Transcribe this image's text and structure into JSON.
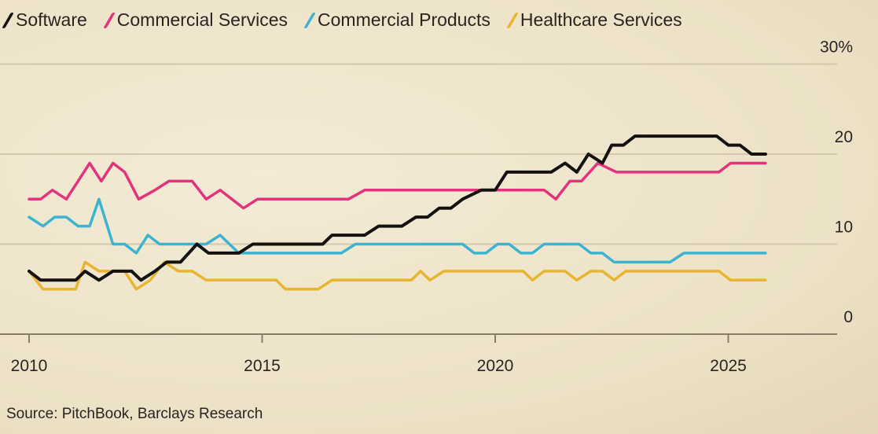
{
  "chart_data": {
    "type": "line",
    "title": "",
    "xlabel": "",
    "ylabel": "",
    "xlim": [
      2010,
      2026
    ],
    "ylim": [
      0,
      30
    ],
    "x_ticks": [
      2010,
      2015,
      2020,
      2025
    ],
    "x_tick_labels": [
      "2010",
      "2015",
      "2020",
      "2025"
    ],
    "y_ticks": [
      0,
      10,
      20,
      30
    ],
    "y_tick_labels": [
      "0",
      "10",
      "20",
      "30%"
    ],
    "grid": true,
    "legend_position": "top-left",
    "series": [
      {
        "name": "Software",
        "color": "#141211",
        "points": [
          [
            2010,
            7
          ],
          [
            2010.25,
            6
          ],
          [
            2011,
            6
          ],
          [
            2011.2,
            7
          ],
          [
            2011.5,
            6
          ],
          [
            2011.8,
            7
          ],
          [
            2012.2,
            7
          ],
          [
            2012.4,
            6
          ],
          [
            2012.7,
            7
          ],
          [
            2012.95,
            8
          ],
          [
            2013.25,
            8
          ],
          [
            2013.6,
            10
          ],
          [
            2013.85,
            9
          ],
          [
            2014.5,
            9
          ],
          [
            2014.8,
            10
          ],
          [
            2016.3,
            10
          ],
          [
            2016.5,
            11
          ],
          [
            2017.2,
            11
          ],
          [
            2017.5,
            12
          ],
          [
            2018,
            12
          ],
          [
            2018.3,
            13
          ],
          [
            2018.55,
            13
          ],
          [
            2018.8,
            14
          ],
          [
            2019.05,
            14
          ],
          [
            2019.3,
            15
          ],
          [
            2019.7,
            16
          ],
          [
            2020,
            16
          ],
          [
            2020.25,
            18
          ],
          [
            2021.2,
            18
          ],
          [
            2021.5,
            19
          ],
          [
            2021.75,
            18
          ],
          [
            2022,
            20
          ],
          [
            2022.3,
            19
          ],
          [
            2022.5,
            21
          ],
          [
            2022.75,
            21
          ],
          [
            2023,
            22
          ],
          [
            2024.75,
            22
          ],
          [
            2025,
            21
          ],
          [
            2025.25,
            21
          ],
          [
            2025.5,
            20
          ],
          [
            2025.8,
            20
          ]
        ]
      },
      {
        "name": "Commercial Services",
        "color": "#e5327d",
        "points": [
          [
            2010,
            15
          ],
          [
            2010.25,
            15
          ],
          [
            2010.5,
            16
          ],
          [
            2010.8,
            15
          ],
          [
            2011.05,
            17
          ],
          [
            2011.3,
            19
          ],
          [
            2011.55,
            17
          ],
          [
            2011.8,
            19
          ],
          [
            2012.05,
            18
          ],
          [
            2012.35,
            15
          ],
          [
            2012.7,
            16
          ],
          [
            2013,
            17
          ],
          [
            2013.5,
            17
          ],
          [
            2013.8,
            15
          ],
          [
            2014.1,
            16
          ],
          [
            2014.6,
            14
          ],
          [
            2014.9,
            15
          ],
          [
            2016.85,
            15
          ],
          [
            2017.2,
            16
          ],
          [
            2021.05,
            16
          ],
          [
            2021.3,
            15
          ],
          [
            2021.6,
            17
          ],
          [
            2021.85,
            17
          ],
          [
            2022.2,
            19
          ],
          [
            2022.6,
            18
          ],
          [
            2024.8,
            18
          ],
          [
            2025.05,
            19
          ],
          [
            2025.8,
            19
          ]
        ]
      },
      {
        "name": "Commercial Products",
        "color": "#3db3d1",
        "points": [
          [
            2010,
            13
          ],
          [
            2010.3,
            12
          ],
          [
            2010.55,
            13
          ],
          [
            2010.8,
            13
          ],
          [
            2011.05,
            12
          ],
          [
            2011.3,
            12
          ],
          [
            2011.5,
            15
          ],
          [
            2011.8,
            10
          ],
          [
            2012.05,
            10
          ],
          [
            2012.3,
            9
          ],
          [
            2012.55,
            11
          ],
          [
            2012.8,
            10
          ],
          [
            2013.55,
            10
          ],
          [
            2013.8,
            10
          ],
          [
            2014.1,
            11
          ],
          [
            2014.5,
            9
          ],
          [
            2016.7,
            9
          ],
          [
            2017,
            10
          ],
          [
            2019.3,
            10
          ],
          [
            2019.55,
            9
          ],
          [
            2019.8,
            9
          ],
          [
            2020.05,
            10
          ],
          [
            2020.3,
            10
          ],
          [
            2020.55,
            9
          ],
          [
            2020.8,
            9
          ],
          [
            2021.05,
            10
          ],
          [
            2021.8,
            10
          ],
          [
            2022.05,
            9
          ],
          [
            2022.3,
            9
          ],
          [
            2022.55,
            8
          ],
          [
            2023.75,
            8
          ],
          [
            2024.05,
            9
          ],
          [
            2025.8,
            9
          ]
        ]
      },
      {
        "name": "Healthcare Services",
        "color": "#e7b52f",
        "points": [
          [
            2010,
            7
          ],
          [
            2010.3,
            5
          ],
          [
            2011,
            5
          ],
          [
            2011.2,
            8
          ],
          [
            2011.5,
            7
          ],
          [
            2012.05,
            7
          ],
          [
            2012.3,
            5
          ],
          [
            2012.6,
            6
          ],
          [
            2012.9,
            8
          ],
          [
            2013.2,
            7
          ],
          [
            2013.5,
            7
          ],
          [
            2013.8,
            6
          ],
          [
            2015.3,
            6
          ],
          [
            2015.5,
            5
          ],
          [
            2016.2,
            5
          ],
          [
            2016.5,
            6
          ],
          [
            2018.2,
            6
          ],
          [
            2018.4,
            7
          ],
          [
            2018.6,
            6
          ],
          [
            2018.9,
            7
          ],
          [
            2020.6,
            7
          ],
          [
            2020.8,
            6
          ],
          [
            2021.05,
            7
          ],
          [
            2021.5,
            7
          ],
          [
            2021.75,
            6
          ],
          [
            2022.05,
            7
          ],
          [
            2022.3,
            7
          ],
          [
            2022.55,
            6
          ],
          [
            2022.8,
            7
          ],
          [
            2024.8,
            7
          ],
          [
            2025.05,
            6
          ],
          [
            2025.8,
            6
          ]
        ]
      }
    ]
  },
  "source": "Source: PitchBook, Barclays Research"
}
